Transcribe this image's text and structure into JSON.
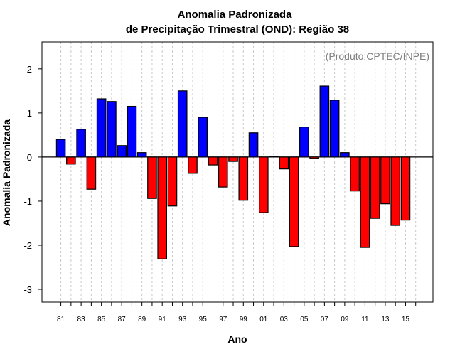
{
  "chart_data": {
    "type": "bar",
    "title": "Anomalia Padronizada",
    "subtitle": "de Precipitação Trimestral (OND): Região 38",
    "annotation": "(Produto:CPTEC/INPE)",
    "xlabel": "Ano",
    "ylabel": "Anomalia Padronizada",
    "ylim": [
      -3.29,
      2.61
    ],
    "yticks": [
      -3,
      -2,
      -1,
      0,
      1,
      2
    ],
    "categories": [
      "81",
      "82",
      "83",
      "84",
      "85",
      "86",
      "87",
      "88",
      "89",
      "90",
      "91",
      "92",
      "93",
      "94",
      "95",
      "96",
      "97",
      "98",
      "99",
      "00",
      "01",
      "02",
      "03",
      "04",
      "05",
      "06",
      "07",
      "08",
      "09",
      "10",
      "11",
      "12",
      "13",
      "14",
      "15"
    ],
    "xtick_labels": [
      "81",
      "83",
      "85",
      "87",
      "89",
      "91",
      "93",
      "95",
      "97",
      "99",
      "01",
      "03",
      "05",
      "07",
      "09",
      "11",
      "13",
      "15"
    ],
    "values": [
      0.4,
      -0.16,
      0.63,
      -0.73,
      1.32,
      1.26,
      0.26,
      1.15,
      0.1,
      -0.94,
      -2.31,
      -1.11,
      1.5,
      -0.37,
      0.9,
      -0.18,
      -0.68,
      -0.1,
      -0.98,
      0.55,
      -1.26,
      0.02,
      -0.27,
      -2.03,
      0.68,
      -0.03,
      1.61,
      1.29,
      0.1,
      -0.77,
      -2.05,
      -1.39,
      -1.06,
      -1.55,
      -1.43
    ],
    "grid": "vertical-dotted",
    "colors": {
      "positive": "#0000ff",
      "negative": "#ff0000"
    }
  }
}
